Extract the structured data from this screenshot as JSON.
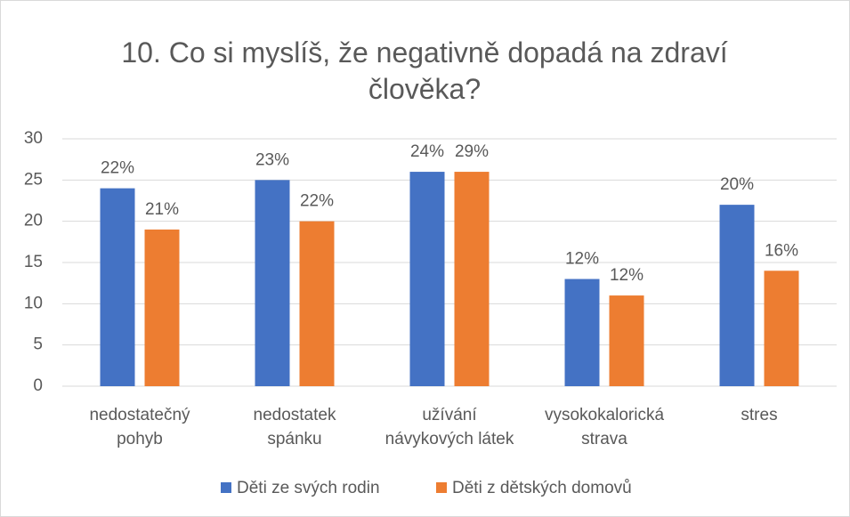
{
  "chart_data": {
    "type": "bar",
    "title": "10. Co si myslíš, že negativně dopadá na zdraví člověka?",
    "categories": [
      "nedostatečný pohyb",
      "nedostatek spánku",
      "užívání návykových látek",
      "vysokokalorická strava",
      "stres"
    ],
    "series": [
      {
        "name": "Děti ze svých rodin",
        "color": "#4472c4",
        "values": [
          24,
          25,
          26,
          13,
          22
        ],
        "data_labels": [
          "22%",
          "23%",
          "24%",
          "12%",
          "20%"
        ]
      },
      {
        "name": "Děti z dětských domovů",
        "color": "#ed7d31",
        "values": [
          19,
          20,
          26,
          11,
          14
        ],
        "data_labels": [
          "21%",
          "22%",
          "29%",
          "12%",
          "16%"
        ]
      }
    ],
    "ylim": [
      0,
      30
    ],
    "yticks": [
      0,
      5,
      10,
      15,
      20,
      25,
      30
    ],
    "grid": true,
    "legend": "bottom"
  }
}
